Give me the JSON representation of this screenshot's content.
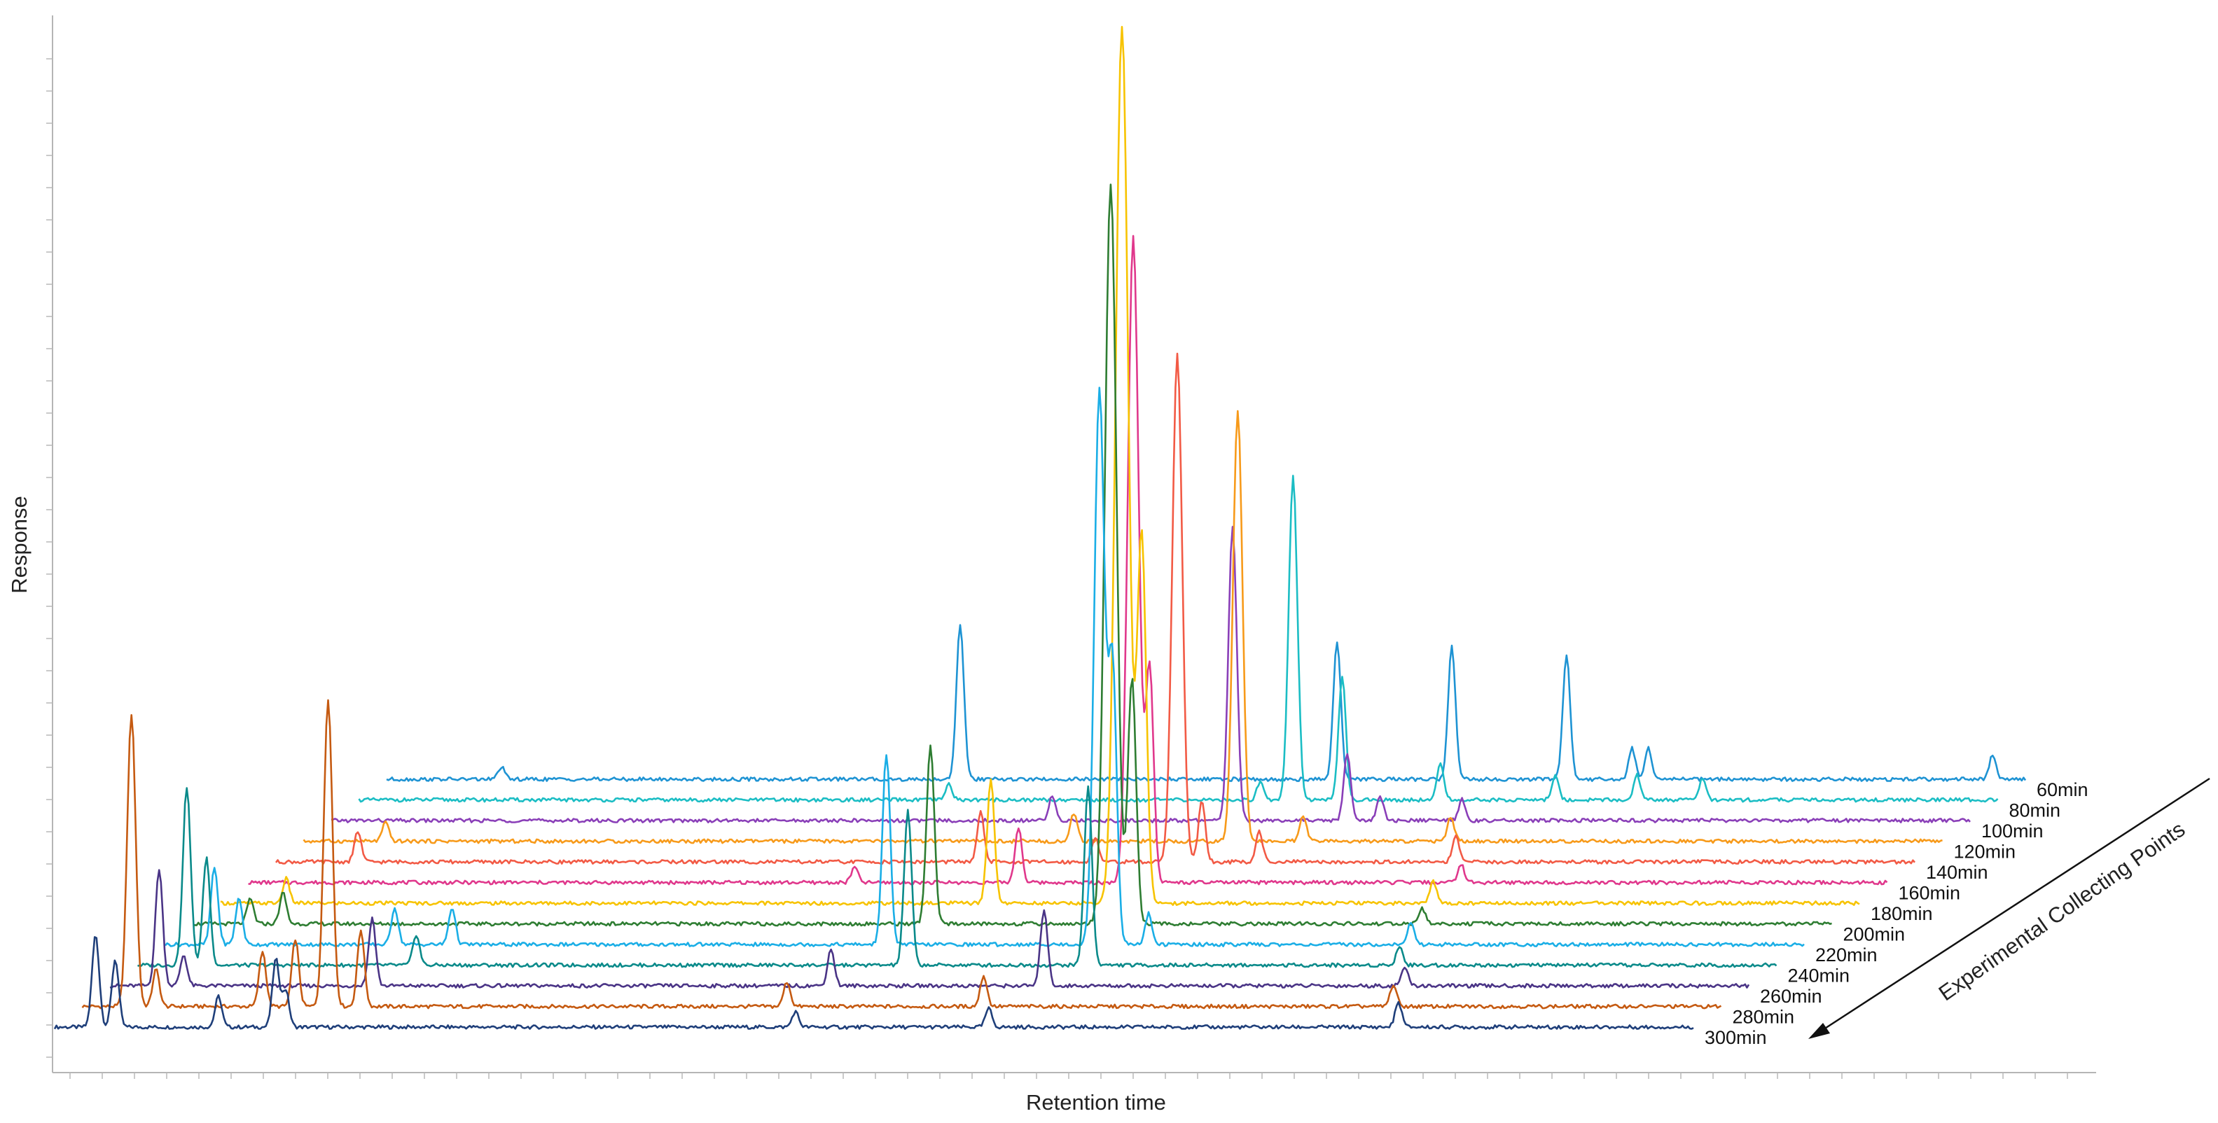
{
  "chart_data": {
    "type": "line",
    "subtype": "stacked-waterfall",
    "xlabel": "Retention time",
    "ylabel": "Response",
    "diagonal_axis_label": "Experimental Collecting Points",
    "grid": false,
    "legend": "none",
    "series": [
      {
        "name": "300min",
        "color": "#1f3f7a",
        "peaks": [
          [
            0.025,
            0.3
          ],
          [
            0.037,
            0.22
          ],
          [
            0.1,
            0.1
          ],
          [
            0.135,
            0.22
          ],
          [
            0.141,
            0.12
          ],
          [
            0.452,
            0.05
          ],
          [
            0.57,
            0.06
          ],
          [
            0.82,
            0.08
          ]
        ]
      },
      {
        "name": "280min",
        "color": "#c55a11",
        "peaks": [
          [
            0.03,
            0.95
          ],
          [
            0.045,
            0.12
          ],
          [
            0.11,
            0.18
          ],
          [
            0.13,
            0.22
          ],
          [
            0.15,
            1.0
          ],
          [
            0.17,
            0.25
          ],
          [
            0.43,
            0.08
          ],
          [
            0.55,
            0.1
          ],
          [
            0.8,
            0.07
          ]
        ]
      },
      {
        "name": "260min",
        "color": "#4a3486",
        "peaks": [
          [
            0.03,
            0.38
          ],
          [
            0.045,
            0.1
          ],
          [
            0.16,
            0.22
          ],
          [
            0.44,
            0.12
          ],
          [
            0.57,
            0.25
          ],
          [
            0.79,
            0.06
          ]
        ]
      },
      {
        "name": "240min",
        "color": "#0a8a8a",
        "peaks": [
          [
            0.03,
            0.58
          ],
          [
            0.042,
            0.35
          ],
          [
            0.17,
            0.1
          ],
          [
            0.47,
            0.5
          ],
          [
            0.58,
            0.58
          ],
          [
            0.77,
            0.06
          ]
        ]
      },
      {
        "name": "220min",
        "color": "#1aaee6",
        "peaks": [
          [
            0.03,
            0.25
          ],
          [
            0.045,
            0.15
          ],
          [
            0.14,
            0.12
          ],
          [
            0.175,
            0.12
          ],
          [
            0.44,
            0.62
          ],
          [
            0.57,
            1.8
          ],
          [
            0.578,
            0.9
          ],
          [
            0.6,
            0.1
          ],
          [
            0.76,
            0.07
          ]
        ]
      },
      {
        "name": "200min",
        "color": "#2e7d32",
        "peaks": [
          [
            0.035,
            0.08
          ],
          [
            0.055,
            0.1
          ],
          [
            0.45,
            0.58
          ],
          [
            0.56,
            2.4
          ],
          [
            0.573,
            0.8
          ],
          [
            0.75,
            0.05
          ]
        ]
      },
      {
        "name": "180min",
        "color": "#f7c300",
        "peaks": [
          [
            0.04,
            0.08
          ],
          [
            0.47,
            0.4
          ],
          [
            0.55,
            2.85
          ],
          [
            0.562,
            1.2
          ],
          [
            0.74,
            0.07
          ]
        ]
      },
      {
        "name": "160min",
        "color": "#e0388c",
        "peaks": [
          [
            0.37,
            0.05
          ],
          [
            0.47,
            0.18
          ],
          [
            0.54,
            2.1
          ],
          [
            0.55,
            0.7
          ],
          [
            0.74,
            0.06
          ]
        ]
      },
      {
        "name": "140min",
        "color": "#f25a45",
        "peaks": [
          [
            0.05,
            0.1
          ],
          [
            0.43,
            0.16
          ],
          [
            0.5,
            0.08
          ],
          [
            0.55,
            1.65
          ],
          [
            0.565,
            0.2
          ],
          [
            0.6,
            0.1
          ],
          [
            0.72,
            0.08
          ]
        ]
      },
      {
        "name": "120min",
        "color": "#f79a1a",
        "peaks": [
          [
            0.05,
            0.06
          ],
          [
            0.47,
            0.09
          ],
          [
            0.57,
            1.4
          ],
          [
            0.61,
            0.08
          ],
          [
            0.7,
            0.08
          ]
        ]
      },
      {
        "name": "100min",
        "color": "#8a3fb8",
        "peaks": [
          [
            0.44,
            0.08
          ],
          [
            0.55,
            0.95
          ],
          [
            0.62,
            0.22
          ],
          [
            0.64,
            0.08
          ],
          [
            0.69,
            0.07
          ]
        ]
      },
      {
        "name": "80min",
        "color": "#1bbdc4",
        "peaks": [
          [
            0.36,
            0.05
          ],
          [
            0.55,
            0.06
          ],
          [
            0.57,
            1.05
          ],
          [
            0.6,
            0.4
          ],
          [
            0.66,
            0.12
          ],
          [
            0.73,
            0.08
          ],
          [
            0.78,
            0.08
          ],
          [
            0.82,
            0.07
          ]
        ]
      },
      {
        "name": "60min",
        "color": "#1e93d3",
        "peaks": [
          [
            0.07,
            0.04
          ],
          [
            0.35,
            0.5
          ],
          [
            0.58,
            0.45
          ],
          [
            0.65,
            0.43
          ],
          [
            0.72,
            0.4
          ],
          [
            0.76,
            0.1
          ],
          [
            0.77,
            0.1
          ],
          [
            0.98,
            0.08
          ]
        ]
      }
    ]
  }
}
